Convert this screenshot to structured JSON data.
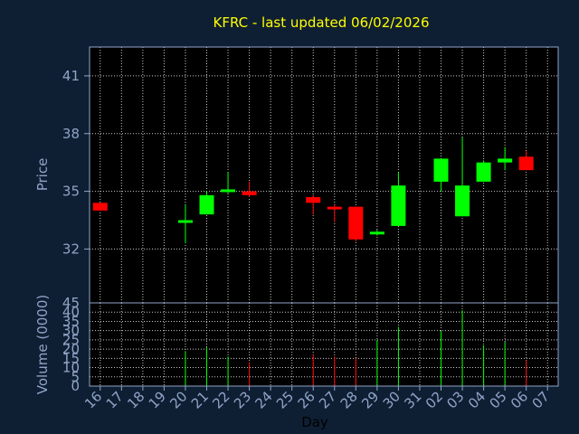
{
  "chart_data": {
    "type": "candlestick",
    "title": "KFRC - last updated 06/02/2026",
    "xlabel": "Day",
    "ylabel": "Price",
    "volume_label": "Volume (0000)",
    "price_ticks": [
      32,
      35,
      38,
      41
    ],
    "volume_ticks": [
      0,
      5,
      10,
      15,
      20,
      25,
      30,
      35,
      40,
      45
    ],
    "ylim": [
      29.2,
      42.5
    ],
    "vlim": [
      0,
      45
    ],
    "grid": true,
    "up_color": "#00ff00",
    "down_color": "#ff0000",
    "days": [
      "16",
      "17",
      "18",
      "19",
      "20",
      "21",
      "22",
      "23",
      "24",
      "25",
      "26",
      "27",
      "28",
      "29",
      "30",
      "31",
      "02",
      "03",
      "04",
      "05",
      "06",
      "07"
    ],
    "candles": [
      {
        "day": "16",
        "open": 34.4,
        "high": 34.4,
        "low": 34.0,
        "close": 34.0,
        "volume": 0
      },
      {
        "day": "20",
        "open": 33.4,
        "high": 34.3,
        "low": 32.3,
        "close": 33.5,
        "volume": 19
      },
      {
        "day": "21",
        "open": 33.8,
        "high": 35.0,
        "low": 33.8,
        "close": 34.8,
        "volume": 21
      },
      {
        "day": "22",
        "open": 35.0,
        "high": 36.0,
        "low": 34.9,
        "close": 35.1,
        "volume": 16
      },
      {
        "day": "23",
        "open": 35.0,
        "high": 35.5,
        "low": 34.7,
        "close": 34.8,
        "volume": 13
      },
      {
        "day": "26",
        "open": 34.7,
        "high": 34.8,
        "low": 33.8,
        "close": 34.4,
        "volume": 17
      },
      {
        "day": "27",
        "open": 34.2,
        "high": 34.3,
        "low": 33.4,
        "close": 34.1,
        "volume": 16
      },
      {
        "day": "28",
        "open": 34.2,
        "high": 34.2,
        "low": 32.4,
        "close": 32.5,
        "volume": 15
      },
      {
        "day": "29",
        "open": 32.8,
        "high": 33.0,
        "low": 32.7,
        "close": 32.9,
        "volume": 25
      },
      {
        "day": "30",
        "open": 33.2,
        "high": 36.0,
        "low": 33.2,
        "close": 35.3,
        "volume": 32
      },
      {
        "day": "02",
        "open": 35.5,
        "high": 36.7,
        "low": 35.0,
        "close": 36.7,
        "volume": 30
      },
      {
        "day": "03",
        "open": 33.7,
        "high": 37.8,
        "low": 33.7,
        "close": 35.3,
        "volume": 41
      },
      {
        "day": "04",
        "open": 35.5,
        "high": 36.6,
        "low": 35.5,
        "close": 36.5,
        "volume": 22
      },
      {
        "day": "05",
        "open": 36.5,
        "high": 37.3,
        "low": 36.1,
        "close": 36.7,
        "volume": 24
      },
      {
        "day": "06",
        "open": 36.8,
        "high": 37.1,
        "low": 36.1,
        "close": 36.1,
        "volume": 14
      }
    ]
  }
}
